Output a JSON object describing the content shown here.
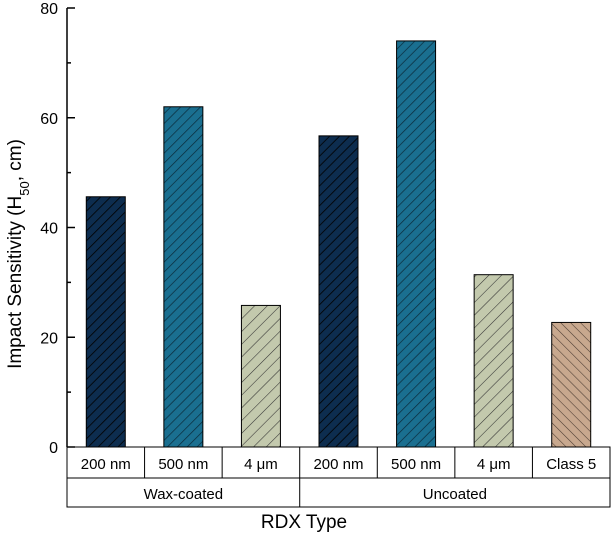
{
  "chart_data": {
    "type": "bar",
    "title": "",
    "ylabel": "Impact Sensitivity (H",
    "ylabel_sub": "50",
    "ylabel_suffix": ", cm)",
    "xlabel": "RDX Type",
    "ylim": [
      0,
      80
    ],
    "yticks": [
      0,
      20,
      40,
      60,
      80
    ],
    "categories": [
      "200 nm",
      "500 nm",
      "4 μm",
      "200 nm",
      "500 nm",
      "4 μm",
      "Class 5"
    ],
    "values": [
      45.6,
      62.0,
      25.8,
      56.7,
      74.0,
      31.4,
      22.7
    ],
    "groups": [
      {
        "label": "Wax-coated",
        "span": 3
      },
      {
        "label": "Uncoated",
        "span": 4
      }
    ],
    "colors": [
      "#0d2d4f",
      "#1a6f90",
      "#c3c9ad",
      "#0d2d4f",
      "#1a6f90",
      "#c3c9ad",
      "#c8a88e"
    ],
    "patterns": [
      "hatch-navy",
      "hatch-teal",
      "hatch-sage",
      "hatch-navy",
      "hatch-teal",
      "hatch-sage",
      "crosshatch-tan"
    ]
  }
}
